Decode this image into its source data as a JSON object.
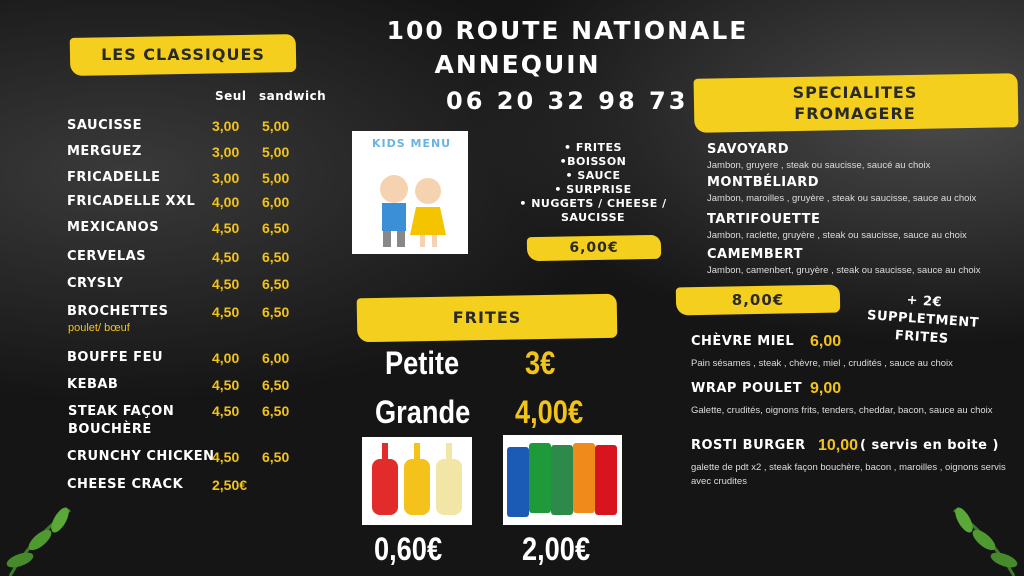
{
  "header": {
    "address_line1": "100 ROUTE NATIONALE",
    "address_line2": "ANNEQUIN",
    "phone": "06 20 32 98 73"
  },
  "classiques": {
    "title": "LES CLASSIQUES",
    "col_seul": "Seul",
    "col_sandwich": "sandwich",
    "items": [
      {
        "name": "SAUCISSE",
        "seul": "3,00",
        "sandwich": "5,00"
      },
      {
        "name": "MERGUEZ",
        "seul": "3,00",
        "sandwich": "5,00"
      },
      {
        "name": "FRICADELLE",
        "seul": "3,00",
        "sandwich": "5,00"
      },
      {
        "name": "FRICADELLE XXL",
        "seul": "4,00",
        "sandwich": "6,00"
      },
      {
        "name": "MEXICANOS",
        "seul": "4,50",
        "sandwich": "6,50"
      },
      {
        "name": "CERVELAS",
        "seul": "4,50",
        "sandwich": "6,50"
      },
      {
        "name": "CRYSLY",
        "seul": "4,50",
        "sandwich": "6,50"
      },
      {
        "name": "BROCHETTES",
        "note": "poulet/ bœuf",
        "seul": "4,50",
        "sandwich": "6,50"
      },
      {
        "name": "BOUFFE FEU",
        "seul": "4,00",
        "sandwich": "6,00"
      },
      {
        "name": "KEBAB",
        "seul": "4,50",
        "sandwich": "6,50"
      },
      {
        "name": "STEAK FAÇON BOUCHÈRE",
        "seul": "4,50",
        "sandwich": "6,50"
      },
      {
        "name": "CRUNCHY CHICKEN",
        "seul": "4,50",
        "sandwich": "6,50"
      },
      {
        "name": "CHEESE CRACK",
        "seul": "2,50€"
      }
    ]
  },
  "kids": {
    "image_label": "KIDS MENU",
    "items": [
      "• FRITES",
      "•BOISSON",
      "• SAUCE",
      "• SURPRISE",
      "• NUGGETS / CHEESE / SAUCISSE"
    ],
    "price": "6,00€"
  },
  "frites": {
    "title": "FRITES",
    "sizes": [
      {
        "name": "Petite",
        "price": "3€"
      },
      {
        "name": "Grande",
        "price": "4,00€"
      }
    ],
    "sauce_price": "0,60€",
    "drink_price": "2,00€"
  },
  "specialites": {
    "title": "SPECIALITES FROMAGERE",
    "items": [
      {
        "name": "SAVOYARD",
        "desc": "Jambon, gruyere , steak ou saucisse, saucé au choix"
      },
      {
        "name": "MONTBÉLIARD",
        "desc": "Jambon, maroilles , gruyère , steak ou saucisse, sauce au choix"
      },
      {
        "name": "TARTIFOUETTE",
        "desc": "Jambon, raclette, gruyère , steak ou saucisse, sauce au choix"
      },
      {
        "name": "CAMEMBERT",
        "desc": "Jambon, camenbert, gruyère , steak ou saucisse, sauce au choix"
      }
    ],
    "price": "8,00€",
    "supplement": "+ 2€ SUPPLETMENT FRITES"
  },
  "others": [
    {
      "name": "CHÈVRE MIEL",
      "price": "6,00",
      "desc": "Pain sésames , steak , chèvre, miel , crudités , sauce au choix"
    },
    {
      "name": "WRAP POULET",
      "price": "9,00",
      "desc": "Galette, crudités, oignons frits, tenders, cheddar, bacon, sauce au choix"
    },
    {
      "name": "ROSTI BURGER",
      "price": "10,00",
      "note": "( servis en boite )",
      "desc": "galette de pdt x2 , steak façon bouchère, bacon , maroilles , oignons servis avec crudites"
    }
  ]
}
